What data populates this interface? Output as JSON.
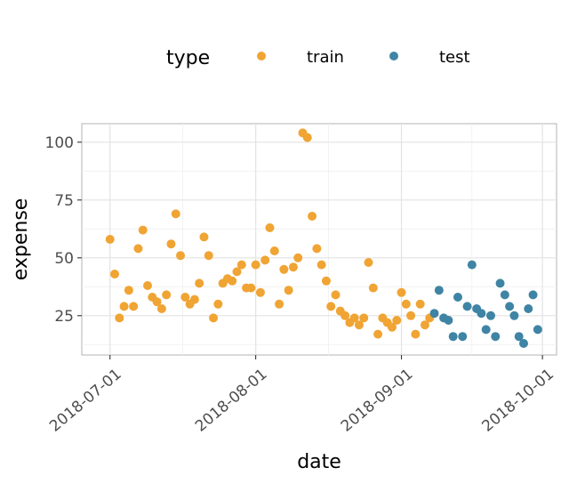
{
  "chart_data": {
    "type": "scatter",
    "xlabel": "date",
    "ylabel": "expense",
    "x_type": "date",
    "xlim": [
      "2018-06-25",
      "2018-10-04"
    ],
    "ylim": [
      8,
      108
    ],
    "x_ticks": [
      "2018-07-01",
      "2018-08-01",
      "2018-09-01",
      "2018-10-01"
    ],
    "y_ticks": [
      25,
      50,
      75,
      100
    ],
    "grid": true,
    "legend": {
      "title": "type",
      "position": "top"
    },
    "series": [
      {
        "name": "train",
        "color": "#f0a433",
        "points": [
          [
            "2018-07-01",
            58
          ],
          [
            "2018-07-02",
            43
          ],
          [
            "2018-07-03",
            24
          ],
          [
            "2018-07-04",
            29
          ],
          [
            "2018-07-05",
            36
          ],
          [
            "2018-07-06",
            29
          ],
          [
            "2018-07-07",
            54
          ],
          [
            "2018-07-08",
            62
          ],
          [
            "2018-07-09",
            38
          ],
          [
            "2018-07-10",
            33
          ],
          [
            "2018-07-11",
            31
          ],
          [
            "2018-07-12",
            28
          ],
          [
            "2018-07-13",
            34
          ],
          [
            "2018-07-14",
            56
          ],
          [
            "2018-07-15",
            69
          ],
          [
            "2018-07-16",
            51
          ],
          [
            "2018-07-17",
            33
          ],
          [
            "2018-07-18",
            30
          ],
          [
            "2018-07-19",
            32
          ],
          [
            "2018-07-20",
            39
          ],
          [
            "2018-07-21",
            59
          ],
          [
            "2018-07-22",
            51
          ],
          [
            "2018-07-23",
            24
          ],
          [
            "2018-07-24",
            30
          ],
          [
            "2018-07-25",
            39
          ],
          [
            "2018-07-26",
            41
          ],
          [
            "2018-07-27",
            40
          ],
          [
            "2018-07-28",
            44
          ],
          [
            "2018-07-29",
            47
          ],
          [
            "2018-07-30",
            37
          ],
          [
            "2018-07-31",
            37
          ],
          [
            "2018-08-01",
            47
          ],
          [
            "2018-08-02",
            35
          ],
          [
            "2018-08-03",
            49
          ],
          [
            "2018-08-04",
            63
          ],
          [
            "2018-08-05",
            53
          ],
          [
            "2018-08-06",
            30
          ],
          [
            "2018-08-07",
            45
          ],
          [
            "2018-08-08",
            36
          ],
          [
            "2018-08-09",
            46
          ],
          [
            "2018-08-10",
            50
          ],
          [
            "2018-08-11",
            104
          ],
          [
            "2018-08-12",
            102
          ],
          [
            "2018-08-13",
            68
          ],
          [
            "2018-08-14",
            54
          ],
          [
            "2018-08-15",
            47
          ],
          [
            "2018-08-16",
            40
          ],
          [
            "2018-08-17",
            29
          ],
          [
            "2018-08-18",
            34
          ],
          [
            "2018-08-19",
            27
          ],
          [
            "2018-08-20",
            25
          ],
          [
            "2018-08-21",
            22
          ],
          [
            "2018-08-22",
            24
          ],
          [
            "2018-08-23",
            21
          ],
          [
            "2018-08-24",
            24
          ],
          [
            "2018-08-25",
            48
          ],
          [
            "2018-08-26",
            37
          ],
          [
            "2018-08-27",
            17
          ],
          [
            "2018-08-28",
            24
          ],
          [
            "2018-08-29",
            22
          ],
          [
            "2018-08-30",
            20
          ],
          [
            "2018-08-31",
            23
          ],
          [
            "2018-09-01",
            35
          ],
          [
            "2018-09-02",
            30
          ],
          [
            "2018-09-03",
            25
          ],
          [
            "2018-09-04",
            17
          ],
          [
            "2018-09-05",
            30
          ],
          [
            "2018-09-06",
            21
          ],
          [
            "2018-09-07",
            24
          ]
        ]
      },
      {
        "name": "test",
        "color": "#3f84a4",
        "points": [
          [
            "2018-09-08",
            26
          ],
          [
            "2018-09-09",
            36
          ],
          [
            "2018-09-10",
            24
          ],
          [
            "2018-09-11",
            23
          ],
          [
            "2018-09-12",
            16
          ],
          [
            "2018-09-13",
            33
          ],
          [
            "2018-09-14",
            16
          ],
          [
            "2018-09-15",
            29
          ],
          [
            "2018-09-16",
            47
          ],
          [
            "2018-09-17",
            28
          ],
          [
            "2018-09-18",
            26
          ],
          [
            "2018-09-19",
            19
          ],
          [
            "2018-09-20",
            25
          ],
          [
            "2018-09-21",
            16
          ],
          [
            "2018-09-22",
            39
          ],
          [
            "2018-09-23",
            34
          ],
          [
            "2018-09-24",
            29
          ],
          [
            "2018-09-25",
            25
          ],
          [
            "2018-09-26",
            16
          ],
          [
            "2018-09-27",
            13
          ],
          [
            "2018-09-28",
            28
          ],
          [
            "2018-09-29",
            34
          ],
          [
            "2018-09-30",
            19
          ]
        ]
      }
    ]
  }
}
